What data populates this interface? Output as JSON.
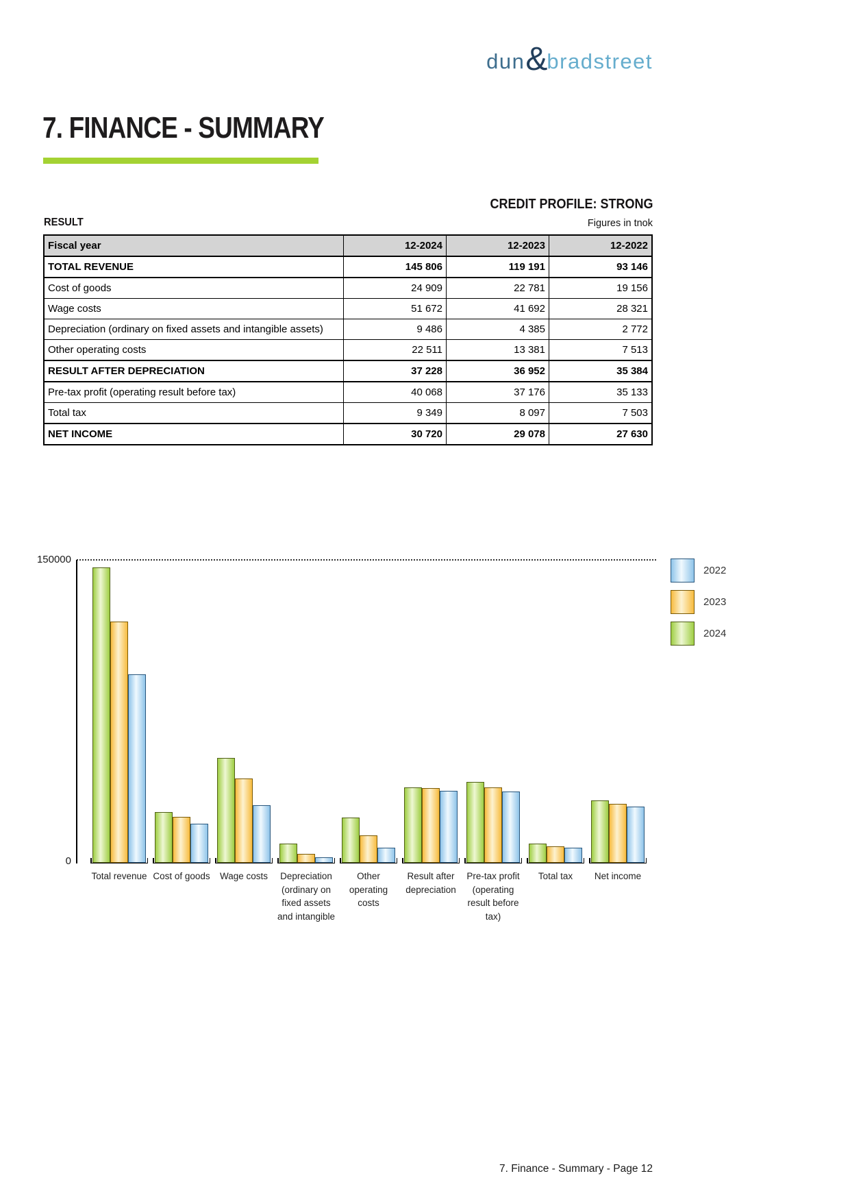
{
  "logo": {
    "dun": "dun",
    "amp": "&",
    "bradstreet": "bradstreet",
    "colors": {
      "dun": "#3e6e8e",
      "amp": "#223f5c",
      "bradstreet": "#66adcd"
    }
  },
  "title": "7. FINANCE - SUMMARY",
  "accent_green": "#a4d233",
  "credit_profile": "CREDIT PROFILE: STRONG",
  "section_label": "RESULT",
  "figures_note": "Figures in tnok",
  "table": {
    "header_bg": "#d4d4d4",
    "headers": [
      "Fiscal year",
      "12-2024",
      "12-2023",
      "12-2022"
    ],
    "rows": [
      {
        "label": "TOTAL REVENUE",
        "values": [
          "145 806",
          "119 191",
          "93 146"
        ],
        "bold": true
      },
      {
        "label": "Cost of goods",
        "values": [
          "24 909",
          "22 781",
          "19 156"
        ],
        "bold": false
      },
      {
        "label": "Wage costs",
        "values": [
          "51 672",
          "41 692",
          "28 321"
        ],
        "bold": false
      },
      {
        "label": "Depreciation (ordinary on fixed assets and intangible assets)",
        "values": [
          "9 486",
          "4 385",
          "2 772"
        ],
        "bold": false
      },
      {
        "label": "Other operating costs",
        "values": [
          "22 511",
          "13 381",
          "7 513"
        ],
        "bold": false
      },
      {
        "label": "RESULT AFTER DEPRECIATION",
        "values": [
          "37 228",
          "36 952",
          "35 384"
        ],
        "bold": true
      },
      {
        "label": "Pre-tax profit (operating result before tax)",
        "values": [
          "40 068",
          "37 176",
          "35 133"
        ],
        "bold": false
      },
      {
        "label": "Total tax",
        "values": [
          "9 349",
          "8 097",
          "7 503"
        ],
        "bold": false
      },
      {
        "label": "NET INCOME",
        "values": [
          "30 720",
          "29 078",
          "27 630"
        ],
        "bold": true
      }
    ]
  },
  "chart_data": {
    "type": "bar",
    "title": "",
    "xlabel": "",
    "ylabel": "",
    "ylim": [
      0,
      150000
    ],
    "ytick_labels": [
      "150000",
      "0"
    ],
    "grid": "single dotted horizontal line at y=150000",
    "legend_position": "top-right",
    "legend_order": [
      "2022",
      "2023",
      "2024"
    ],
    "categories": [
      {
        "label": "Total revenue",
        "lines": [
          "Total revenue"
        ]
      },
      {
        "label": "Cost of goods",
        "lines": [
          "Cost of goods"
        ]
      },
      {
        "label": "Wage costs",
        "lines": [
          "Wage costs"
        ]
      },
      {
        "label": "Depreciation (ordinary on fixed assets and intangible",
        "lines": [
          "Depreciation",
          "(ordinary on",
          "fixed assets",
          "and intangible"
        ]
      },
      {
        "label": "Other operating costs",
        "lines": [
          "Other",
          "operating",
          "costs"
        ]
      },
      {
        "label": "Result after depreciation",
        "lines": [
          "Result after",
          "depreciation"
        ]
      },
      {
        "label": "Pre-tax profit (operating result before tax)",
        "lines": [
          "Pre-tax profit",
          "(operating",
          "result before",
          "tax)"
        ]
      },
      {
        "label": "Total tax",
        "lines": [
          "Total tax"
        ]
      },
      {
        "label": "Net income",
        "lines": [
          "Net income"
        ]
      }
    ],
    "series": [
      {
        "name": "2024",
        "color": "#9fce44",
        "color_light": "#eef7d3",
        "border_color": "#4f5f16",
        "values": [
          145806,
          24909,
          51672,
          9486,
          22511,
          37228,
          40068,
          9349,
          30720
        ]
      },
      {
        "name": "2023",
        "color": "#f7bb3f",
        "color_light": "#fdf2d0",
        "border_color": "#7a5a06",
        "values": [
          119191,
          22781,
          41692,
          4385,
          13381,
          36952,
          37176,
          8097,
          29078
        ]
      },
      {
        "name": "2022",
        "color": "#8fc4e9",
        "color_light": "#f0f9fe",
        "border_color": "#29567c",
        "values": [
          93146,
          19156,
          28321,
          2772,
          7513,
          35384,
          35133,
          7503,
          27630
        ]
      }
    ]
  },
  "footer": "7. Finance - Summary - Page 12"
}
